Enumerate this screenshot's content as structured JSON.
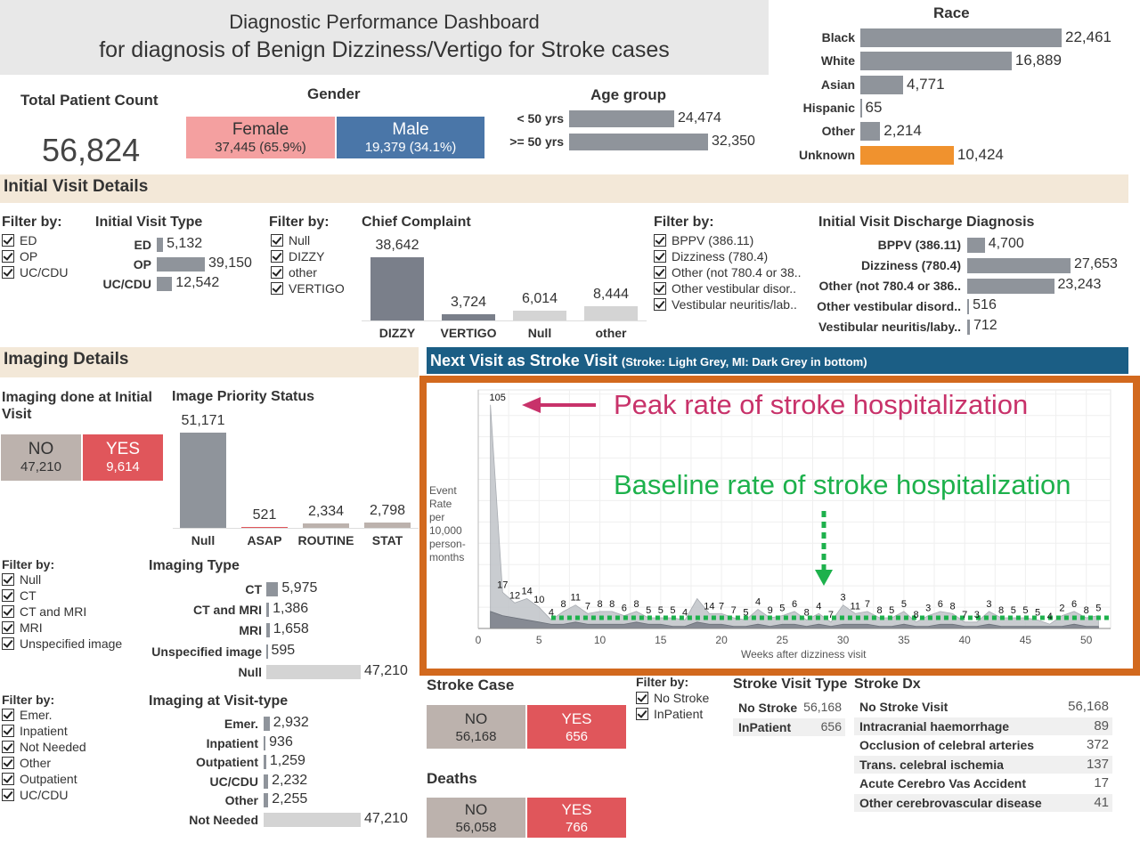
{
  "title": {
    "line1": "Diagnostic Performance Dashboard",
    "line2": "for diagnosis of Benign Dizziness/Vertigo for Stroke cases"
  },
  "total": {
    "label": "Total Patient Count",
    "value": "56,824"
  },
  "gender": {
    "title": "Gender",
    "female_label": "Female",
    "female_value": "37,445 (65.9%)",
    "male_label": "Male",
    "male_value": "19,379 (34.1%)",
    "female_color": "#f4a0a0",
    "male_color": "#4a76a8"
  },
  "age": {
    "title": "Age group",
    "rows": [
      {
        "label": "< 50 yrs",
        "value": "24,474",
        "n": 24474
      },
      {
        "label": ">= 50 yrs",
        "value": "32,350",
        "n": 32350
      }
    ]
  },
  "race": {
    "title": "Race",
    "rows": [
      {
        "label": "Black",
        "value": "22,461",
        "n": 22461
      },
      {
        "label": "White",
        "value": "16,889",
        "n": 16889
      },
      {
        "label": "Asian",
        "value": "4,771",
        "n": 4771
      },
      {
        "label": "Hispanic",
        "value": "65",
        "n": 65
      },
      {
        "label": "Other",
        "value": "2,214",
        "n": 2214
      },
      {
        "label": "Unknown",
        "value": "10,424",
        "n": 10424
      }
    ],
    "highlight_color": "#f0922e"
  },
  "initial_visit": {
    "section": "Initial Visit Details",
    "filter1": {
      "title": "Filter by:",
      "items": [
        "ED",
        "OP",
        "UC/CDU"
      ]
    },
    "visit_type": {
      "title": "Initial Visit Type",
      "rows": [
        {
          "label": "ED",
          "value": "5,132",
          "n": 5132
        },
        {
          "label": "OP",
          "value": "39,150",
          "n": 39150
        },
        {
          "label": "UC/CDU",
          "value": "12,542",
          "n": 12542
        }
      ]
    },
    "filter2": {
      "title": "Filter by:",
      "items": [
        "Null",
        "DIZZY",
        "other",
        "VERTIGO"
      ]
    },
    "complaint": {
      "title": "Chief Complaint",
      "bars": [
        {
          "label": "DIZZY",
          "value": "38,642",
          "n": 38642
        },
        {
          "label": "VERTIGO",
          "value": "3,724",
          "n": 3724
        },
        {
          "label": "Null",
          "value": "6,014",
          "n": 6014
        },
        {
          "label": "other",
          "value": "8,444",
          "n": 8444
        }
      ]
    },
    "filter3": {
      "title": "Filter by:",
      "items": [
        "BPPV (386.11)",
        "Dizziness (780.4)",
        "Other (not 780.4 or 38..",
        "Other vestibular disor..",
        "Vestibular neuritis/lab.."
      ]
    },
    "discharge": {
      "title": "Initial Visit Discharge Diagnosis",
      "rows": [
        {
          "label": "BPPV (386.11)",
          "value": "4,700",
          "n": 4700
        },
        {
          "label": "Dizziness (780.4)",
          "value": "27,653",
          "n": 27653
        },
        {
          "label": "Other (not 780.4 or 386..",
          "value": "23,243",
          "n": 23243
        },
        {
          "label": "Other vestibular disord..",
          "value": "516",
          "n": 516
        },
        {
          "label": "Vestibular neuritis/laby..",
          "value": "712",
          "n": 712
        }
      ]
    }
  },
  "imaging": {
    "section": "Imaging Details",
    "done_title": "Imaging done at Initial Visit",
    "no_label": "NO",
    "no_value": "47,210",
    "yes_label": "YES",
    "yes_value": "9,614",
    "priority": {
      "title": "Image Priority Status",
      "bars": [
        {
          "label": "Null",
          "value": "51,171",
          "n": 51171
        },
        {
          "label": "ASAP",
          "value": "521",
          "n": 521
        },
        {
          "label": "ROUTINE",
          "value": "2,334",
          "n": 2334
        },
        {
          "label": "STAT",
          "value": "2,798",
          "n": 2798
        }
      ]
    },
    "filter4": {
      "title": "Filter by:",
      "items": [
        "Null",
        "CT",
        "CT and MRI",
        "MRI",
        "Unspecified image"
      ]
    },
    "type": {
      "title": "Imaging Type",
      "rows": [
        {
          "label": "CT",
          "value": "5,975",
          "n": 5975
        },
        {
          "label": "CT and MRI",
          "value": "1,386",
          "n": 1386
        },
        {
          "label": "MRI",
          "value": "1,658",
          "n": 1658
        },
        {
          "label": "Unspecified image",
          "value": "595",
          "n": 595
        },
        {
          "label": "Null",
          "value": "47,210",
          "n": 47210
        }
      ]
    },
    "filter5": {
      "title": "Filter by:",
      "items": [
        "Emer.",
        "Inpatient",
        "Not Needed",
        "Other",
        "Outpatient",
        "UC/CDU"
      ]
    },
    "visit_type": {
      "title": "Imaging at Visit-type",
      "rows": [
        {
          "label": "Emer.",
          "value": "2,932",
          "n": 2932
        },
        {
          "label": "Inpatient",
          "value": "936",
          "n": 936
        },
        {
          "label": "Outpatient",
          "value": "1,259",
          "n": 1259
        },
        {
          "label": "UC/CDU",
          "value": "2,232",
          "n": 2232
        },
        {
          "label": "Other",
          "value": "2,255",
          "n": 2255
        },
        {
          "label": "Not Needed",
          "value": "47,210",
          "n": 47210
        }
      ]
    }
  },
  "next_visit": {
    "header": "Next Visit as Stroke Visit",
    "header_sub": "(Stroke: Light Grey, MI: Dark Grey in bottom)",
    "peak_annotation": "Peak rate of stroke hospitalization",
    "baseline_annotation": "Baseline rate of stroke hospitalization",
    "header_color": "#1b5e85",
    "frame_color": "#d2691e"
  },
  "chart_data": {
    "type": "area",
    "xlabel": "Weeks after dizziness visit",
    "ylabel_lines": [
      "Event",
      "Rate",
      "per",
      "10,000",
      "person-",
      "months"
    ],
    "xlim": [
      0,
      52
    ],
    "ylim": [
      0,
      112
    ],
    "xticks": [
      0,
      5,
      10,
      15,
      20,
      25,
      30,
      35,
      40,
      45,
      50
    ],
    "series": [
      {
        "values": [
          105,
          17,
          12,
          14,
          10,
          4,
          8,
          11,
          7,
          8,
          8,
          6,
          8,
          5,
          5,
          5,
          4,
          14,
          7,
          7,
          5,
          4,
          9,
          5,
          6,
          8,
          4,
          7,
          3,
          11,
          7,
          8,
          5,
          5,
          8,
          3,
          6,
          8,
          7,
          3,
          3,
          8,
          5,
          5,
          5,
          4,
          2,
          6,
          8,
          5,
          6
        ]
      },
      {
        "values": [
          8,
          6,
          5,
          4,
          3,
          2,
          2,
          3,
          2,
          2,
          2,
          2,
          3,
          2,
          2,
          1,
          1,
          3,
          2,
          2,
          1,
          1,
          2,
          1,
          2,
          2,
          1,
          2,
          1,
          2,
          2,
          2,
          1,
          1,
          2,
          1,
          1,
          2,
          2,
          1,
          1,
          2,
          1,
          1,
          1,
          1,
          1,
          1,
          2,
          1,
          1
        ]
      }
    ],
    "labeled_points": [
      {
        "x": 1,
        "v": "105"
      },
      {
        "x": 2,
        "v": "17"
      },
      {
        "x": 3,
        "v": "12"
      },
      {
        "x": 4,
        "v": "14"
      },
      {
        "x": 5,
        "v": "10"
      },
      {
        "x": 6,
        "v": "4"
      },
      {
        "x": 7,
        "v": "8"
      },
      {
        "x": 8,
        "v": "11"
      },
      {
        "x": 9,
        "v": "7"
      },
      {
        "x": 10,
        "v": "8"
      },
      {
        "x": 11,
        "v": "8"
      },
      {
        "x": 12,
        "v": "6"
      },
      {
        "x": 13,
        "v": "8"
      },
      {
        "x": 14,
        "v": "5"
      },
      {
        "x": 15,
        "v": "5"
      },
      {
        "x": 16,
        "v": "5"
      },
      {
        "x": 17,
        "v": "4"
      },
      {
        "x": 19,
        "v": "14"
      },
      {
        "x": 20,
        "v": "7"
      },
      {
        "x": 21,
        "v": "7"
      },
      {
        "x": 22,
        "v": "5"
      },
      {
        "x": 23,
        "v": "4"
      },
      {
        "x": 24,
        "v": "9"
      },
      {
        "x": 25,
        "v": "5"
      },
      {
        "x": 26,
        "v": "6"
      },
      {
        "x": 27,
        "v": "8"
      },
      {
        "x": 28,
        "v": "4"
      },
      {
        "x": 29,
        "v": "7"
      },
      {
        "x": 30,
        "v": "3"
      },
      {
        "x": 31,
        "v": "11"
      },
      {
        "x": 32,
        "v": "7"
      },
      {
        "x": 33,
        "v": "8"
      },
      {
        "x": 34,
        "v": "5"
      },
      {
        "x": 35,
        "v": "5"
      },
      {
        "x": 36,
        "v": "8"
      },
      {
        "x": 37,
        "v": "3"
      },
      {
        "x": 38,
        "v": "6"
      },
      {
        "x": 39,
        "v": "8"
      },
      {
        "x": 40,
        "v": "7"
      },
      {
        "x": 41,
        "v": "3"
      },
      {
        "x": 42,
        "v": "3"
      },
      {
        "x": 43,
        "v": "8"
      },
      {
        "x": 44,
        "v": "5"
      },
      {
        "x": 45,
        "v": "5"
      },
      {
        "x": 46,
        "v": "5"
      },
      {
        "x": 47,
        "v": "4"
      },
      {
        "x": 48,
        "v": "2"
      },
      {
        "x": 49,
        "v": "6"
      },
      {
        "x": 50,
        "v": "8"
      },
      {
        "x": 51,
        "v": "5"
      },
      {
        "x": 52,
        "v": "6"
      }
    ],
    "baseline": 5,
    "grid": true
  },
  "stroke_case": {
    "title": "Stroke Case",
    "no_label": "NO",
    "no_value": "56,168",
    "yes_label": "YES",
    "yes_value": "656"
  },
  "filter6": {
    "title": "Filter by:",
    "items": [
      "No Stroke",
      "InPatient"
    ]
  },
  "stroke_visit_type": {
    "title": "Stroke Visit Type",
    "rows": [
      {
        "label": "No Stroke",
        "value": "56,168"
      },
      {
        "label": "InPatient",
        "value": "656"
      }
    ]
  },
  "stroke_dx": {
    "title": "Stroke Dx",
    "rows": [
      {
        "label": "No Stroke Visit",
        "value": "56,168"
      },
      {
        "label": "Intracranial haemorrhage",
        "value": "89"
      },
      {
        "label": "Occlusion of celebral arteries",
        "value": "372"
      },
      {
        "label": "Trans. celebral ischemia",
        "value": "137"
      },
      {
        "label": "Acute Cerebro Vas Accident",
        "value": "17"
      },
      {
        "label": "Other cerebrovascular disease",
        "value": "41"
      }
    ]
  },
  "deaths": {
    "title": "Deaths",
    "no_label": "NO",
    "no_value": "56,058",
    "yes_label": "YES",
    "yes_value": "766"
  },
  "colors": {
    "bar": "#8f949b",
    "tile_no": "#bcb2ad",
    "tile_yes": "#e0565b",
    "light_bar": "#d4d4d4",
    "dark_bar": "#7a7f88"
  }
}
